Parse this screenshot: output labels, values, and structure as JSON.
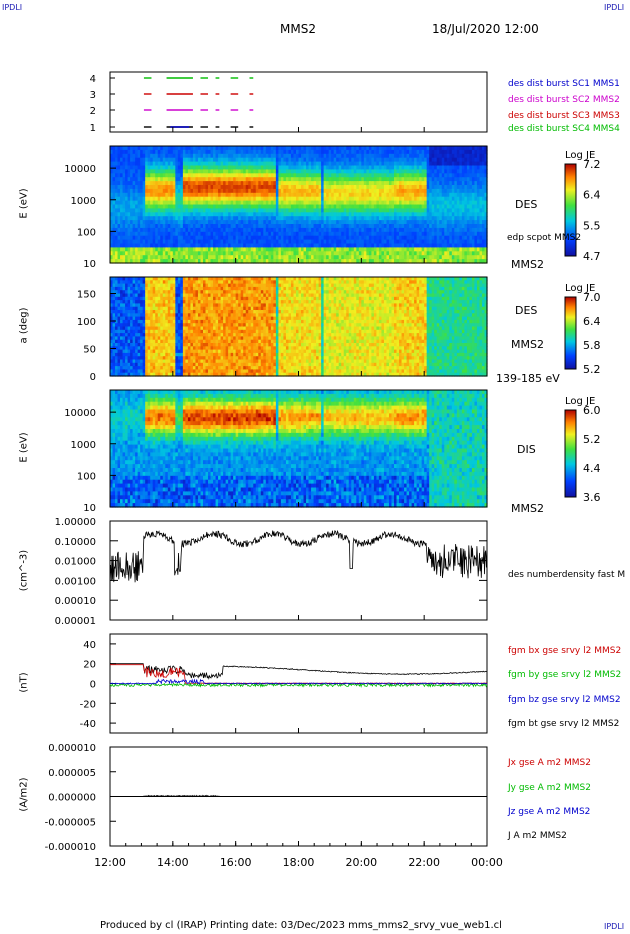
{
  "header": {
    "corner_left": "IPDLI",
    "corner_right": "IPDLI",
    "title": "MMS2",
    "datetime": "18/Jul/2020 12:00",
    "corner_bottom_right": "IPDLI"
  },
  "footer": {
    "text": "Produced by cl (IRAP)   Printing date: 03/Dec/2023   mms_mms2_srvy_vue_web1.cl"
  },
  "colors": {
    "blue": "#0000cc",
    "magenta": "#cc00cc",
    "red": "#cc0000",
    "green": "#00bb00",
    "black": "#000000"
  },
  "chart_data": [
    {
      "type": "scatter",
      "name": "burst-availability",
      "x": [
        "13:00",
        "13:30",
        "14:00",
        "14:20",
        "14:40",
        "15:10",
        "15:40"
      ],
      "yticks": [
        "1",
        "2",
        "3",
        "4"
      ],
      "ylim": [
        0.5,
        4.5
      ],
      "legend": [
        {
          "label": "des dist burst SC1 MMS1",
          "color": "#0000cc"
        },
        {
          "label": "des dist burst SC2 MMS2",
          "color": "#cc00cc"
        },
        {
          "label": "des dist burst SC3 MMS3",
          "color": "#cc0000"
        },
        {
          "label": "des dist burst SC4 MMS4",
          "color": "#00bb00"
        }
      ]
    },
    {
      "type": "heatmap",
      "name": "des-energy-spectrogram",
      "ylabel": "E (eV)",
      "yticks": [
        "10",
        "100",
        "1000",
        "10000"
      ],
      "right_labels": [
        "DES",
        "edp scpot MMS2",
        "MMS2"
      ],
      "colorbar": {
        "title": "Log JE",
        "ticks": [
          "7.2",
          "6.4",
          "5.5",
          "4.7"
        ],
        "range": [
          4.7,
          7.2
        ]
      }
    },
    {
      "type": "heatmap",
      "name": "des-pitch-angle",
      "ylabel": "a (deg)",
      "yticks": [
        "0",
        "50",
        "100",
        "150"
      ],
      "right_labels": [
        "DES",
        "MMS2",
        "139-185 eV"
      ],
      "colorbar": {
        "title": "Log JE",
        "ticks": [
          "7.0",
          "6.4",
          "5.8",
          "5.2"
        ],
        "range": [
          5.2,
          7.0
        ]
      }
    },
    {
      "type": "heatmap",
      "name": "dis-energy-spectrogram",
      "ylabel": "E (eV)",
      "yticks": [
        "10",
        "100",
        "1000",
        "10000"
      ],
      "right_labels": [
        "DIS",
        "MMS2"
      ],
      "colorbar": {
        "title": "Log JE",
        "ticks": [
          "6.0",
          "5.2",
          "4.4",
          "3.6"
        ],
        "range": [
          3.6,
          6.0
        ]
      }
    },
    {
      "type": "line",
      "name": "density",
      "ylabel": "(cm^-3)",
      "yscale": "log",
      "yticks": [
        "0.00001",
        "0.00010",
        "0.00100",
        "0.01000",
        "0.10000",
        "1.00000"
      ],
      "legend": [
        {
          "label": "des numberdensity fast M",
          "color": "#000000"
        }
      ]
    },
    {
      "type": "line",
      "name": "magnetic-field",
      "ylabel": "(nT)",
      "ylim": [
        -50,
        50
      ],
      "yticks": [
        "-40",
        "-20",
        "0",
        "20",
        "40"
      ],
      "legend": [
        {
          "label": "fgm bx gse srvy l2 MMS2",
          "color": "#cc0000"
        },
        {
          "label": "fgm by gse srvy l2 MMS2",
          "color": "#00bb00"
        },
        {
          "label": "fgm bz gse srvy l2 MMS2",
          "color": "#0000cc"
        },
        {
          "label": "fgm bt gse srvy l2 MMS2",
          "color": "#000000"
        }
      ]
    },
    {
      "type": "line",
      "name": "current-density",
      "ylabel": "(A/m2)",
      "ylim": [
        -1e-05,
        1e-05
      ],
      "yticks": [
        "-0.000010",
        "-0.000005",
        "0.000000",
        "0.000005",
        "0.000010"
      ],
      "legend": [
        {
          "label": "Jx gse A m2 MMS2",
          "color": "#cc0000"
        },
        {
          "label": "Jy gse A m2 MMS2",
          "color": "#00bb00"
        },
        {
          "label": "Jz gse A m2 MMS2",
          "color": "#0000cc"
        },
        {
          "label": "J A m2 MMS2",
          "color": "#000000"
        }
      ]
    }
  ],
  "time_axis": {
    "ticks": [
      "12:00",
      "14:00",
      "16:00",
      "18:00",
      "20:00",
      "22:00",
      "00:00"
    ]
  }
}
